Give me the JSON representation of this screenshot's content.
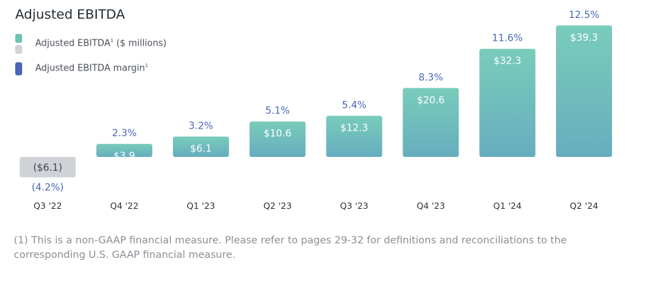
{
  "title": "Adjusted EBITDA",
  "legend": {
    "items": [
      {
        "label": "Adjusted EBITDA",
        "sup": "1",
        "suffix": " ($ millions)",
        "colors": [
          "#6cc3b5",
          "#d0d3d8"
        ]
      },
      {
        "label": "Adjusted EBITDA margin",
        "sup": "1",
        "suffix": "",
        "colors": [
          "#4a66b7"
        ]
      }
    ]
  },
  "colors": {
    "bar_top": "#79ccbb",
    "bar_bottom": "#66adbe",
    "negative_bar": "#cfd2d7",
    "negative_text": "#3f4450",
    "positive_text": "#ffffff",
    "margin_text": "#4a66b7",
    "category_text": "#2d3036"
  },
  "chart_data": {
    "type": "bar",
    "title": "Adjusted EBITDA",
    "categories": [
      "Q3 '22",
      "Q4 '22",
      "Q1 '23",
      "Q2 '23",
      "Q3 '23",
      "Q4 '23",
      "Q1 '24",
      "Q2 '24"
    ],
    "series": [
      {
        "name": "Adjusted EBITDA ($ millions)",
        "values": [
          -6.1,
          3.9,
          6.1,
          10.6,
          12.3,
          20.6,
          32.3,
          39.3
        ],
        "labels": [
          "($6.1)",
          "$3.9",
          "$6.1",
          "$10.6",
          "$12.3",
          "$20.6",
          "$32.3",
          "$39.3"
        ]
      },
      {
        "name": "Adjusted EBITDA margin",
        "values": [
          -4.2,
          2.3,
          3.2,
          5.1,
          5.4,
          8.3,
          11.6,
          12.5
        ],
        "labels": [
          "(4.2%)",
          "2.3%",
          "3.2%",
          "5.1%",
          "5.4%",
          "8.3%",
          "11.6%",
          "12.5%"
        ]
      }
    ],
    "xlabel": "",
    "ylabel": "",
    "grid": false,
    "legend_position": "top-left"
  },
  "footnote": "(1) This is a non-GAAP financial measure. Please refer to pages 29-32 for definitions and reconciliations to the corresponding U.S. GAAP financial measure."
}
